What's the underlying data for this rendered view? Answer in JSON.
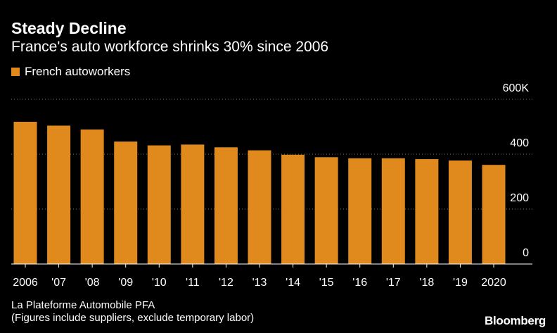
{
  "title": "Steady Decline",
  "subtitle": "France's auto workforce shrinks 30% since 2006",
  "legend": {
    "label": "French autoworkers",
    "color": "#e08a1e"
  },
  "source": "La Plateforme Automobile PFA",
  "note": "(Figures include suppliers, exclude temporary labor)",
  "logo": "Bloomberg",
  "chart_data": {
    "type": "bar",
    "title": "Steady Decline",
    "subtitle": "France's auto workforce shrinks 30% since 2006",
    "categories": [
      "2006",
      "'07",
      "'08",
      "'09",
      "'10",
      "'11",
      "'12",
      "'13",
      "'14",
      "'15",
      "'16",
      "'17",
      "'18",
      "'19",
      "2020"
    ],
    "series": [
      {
        "name": "French autoworkers",
        "values": [
          518,
          504,
          490,
          446,
          432,
          435,
          425,
          414,
          398,
          389,
          385,
          385,
          382,
          377,
          361
        ]
      }
    ],
    "ylim": [
      0,
      600
    ],
    "yticks": [
      0,
      200,
      400,
      600
    ],
    "ytick_labels": [
      "0",
      "200",
      "400",
      "600K"
    ],
    "y_axis_side": "right",
    "grid": true,
    "legend_position": "top-left",
    "bar_color": "#e08a1e"
  }
}
